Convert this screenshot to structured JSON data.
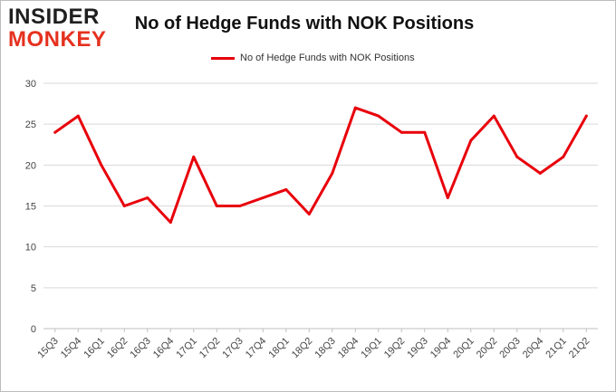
{
  "logo": {
    "line1": "INSIDER",
    "line2": "MONKEY"
  },
  "chart_data": {
    "type": "line",
    "title": "No of Hedge Funds with NOK Positions",
    "xlabel": "",
    "ylabel": "",
    "categories": [
      "15Q3",
      "15Q4",
      "16Q1",
      "16Q2",
      "16Q3",
      "16Q4",
      "17Q1",
      "17Q2",
      "17Q3",
      "17Q4",
      "18Q1",
      "18Q2",
      "18Q3",
      "18Q4",
      "19Q1",
      "19Q2",
      "19Q3",
      "19Q4",
      "20Q1",
      "20Q2",
      "20Q3",
      "20Q4",
      "21Q1",
      "21Q2"
    ],
    "series": [
      {
        "name": "No of Hedge Funds with NOK Positions",
        "values": [
          24,
          26,
          20,
          15,
          16,
          13,
          21,
          15,
          15,
          16,
          17,
          14,
          19,
          27,
          26,
          24,
          24,
          16,
          23,
          26,
          21,
          19,
          21,
          26
        ],
        "color": "#e8000b"
      }
    ],
    "ylim": [
      0,
      30
    ],
    "yticks": [
      0,
      5,
      10,
      15,
      20,
      25,
      30
    ],
    "grid": true,
    "legend": "top-center"
  }
}
